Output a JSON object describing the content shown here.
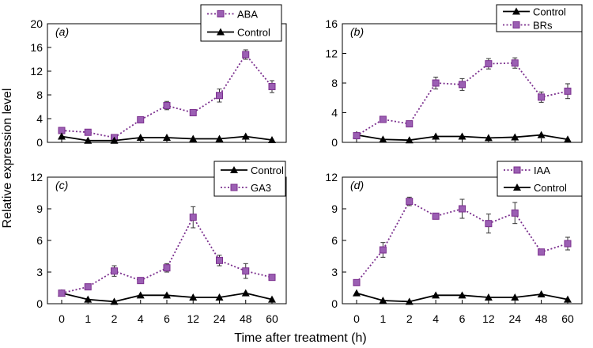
{
  "figure": {
    "ylabel": "Relative expression level",
    "xlabel": "Time after treatment (h)"
  },
  "colors": {
    "treatment": "#7b2f8e",
    "treatment_fill": "#9b5fb3",
    "control": "#000000"
  },
  "chart_data": [
    {
      "type": "line",
      "panel": "(a)",
      "categories": [
        "0",
        "1",
        "2",
        "4",
        "6",
        "12",
        "24",
        "48",
        "60"
      ],
      "ylim": [
        0,
        20
      ],
      "yticks": [
        "0",
        "4",
        "8",
        "12",
        "16",
        "20"
      ],
      "legend_position": "top-right",
      "legend": [
        "ABA",
        "Control"
      ],
      "series": [
        {
          "name": "ABA",
          "style": "dotted-square",
          "values": [
            2.0,
            1.7,
            0.8,
            3.8,
            6.2,
            5.0,
            7.9,
            14.8,
            9.4
          ],
          "errors": [
            0.3,
            0.3,
            0.2,
            0.3,
            0.7,
            0.3,
            1.1,
            0.8,
            1.0
          ]
        },
        {
          "name": "Control",
          "style": "solid-triangle",
          "values": [
            1.0,
            0.3,
            0.3,
            0.8,
            0.8,
            0.6,
            0.6,
            1.0,
            0.4
          ]
        }
      ]
    },
    {
      "type": "line",
      "panel": "(b)",
      "categories": [
        "0",
        "1",
        "2",
        "4",
        "6",
        "12",
        "24",
        "48",
        "60"
      ],
      "ylim": [
        0,
        16
      ],
      "yticks": [
        "0",
        "4",
        "8",
        "12",
        "16"
      ],
      "legend_position": "top-right",
      "legend": [
        "Control",
        "BRs"
      ],
      "series": [
        {
          "name": "Control",
          "style": "solid-triangle",
          "values": [
            1.0,
            0.4,
            0.3,
            0.8,
            0.8,
            0.6,
            0.7,
            1.0,
            0.4
          ]
        },
        {
          "name": "BRs",
          "style": "dotted-square",
          "values": [
            0.9,
            3.1,
            2.5,
            8.0,
            7.8,
            10.6,
            10.7,
            6.1,
            6.9
          ],
          "errors": [
            0.2,
            0.3,
            0.2,
            0.8,
            0.8,
            0.7,
            0.7,
            0.7,
            1.0
          ]
        }
      ]
    },
    {
      "type": "line",
      "panel": "(c)",
      "categories": [
        "0",
        "1",
        "2",
        "4",
        "6",
        "12",
        "24",
        "48",
        "60"
      ],
      "ylim": [
        0,
        12
      ],
      "yticks": [
        "0",
        "3",
        "6",
        "9",
        "12"
      ],
      "legend_position": "top-right",
      "legend": [
        "Control",
        "GA3"
      ],
      "series": [
        {
          "name": "Control",
          "style": "solid-triangle",
          "values": [
            1.0,
            0.4,
            0.2,
            0.8,
            0.8,
            0.6,
            0.6,
            1.0,
            0.4
          ]
        },
        {
          "name": "GA3",
          "style": "dotted-square",
          "values": [
            1.0,
            1.6,
            3.1,
            2.2,
            3.4,
            8.2,
            4.1,
            3.1,
            2.5
          ],
          "errors": [
            0.1,
            0.2,
            0.5,
            0.2,
            0.4,
            1.0,
            0.5,
            0.7,
            0.1
          ]
        }
      ]
    },
    {
      "type": "line",
      "panel": "(d)",
      "categories": [
        "0",
        "1",
        "2",
        "4",
        "6",
        "12",
        "24",
        "48",
        "60"
      ],
      "ylim": [
        0,
        12
      ],
      "yticks": [
        "0",
        "3",
        "6",
        "9",
        "12"
      ],
      "legend_position": "top-right",
      "legend": [
        "IAA",
        "Control"
      ],
      "series": [
        {
          "name": "IAA",
          "style": "dotted-square",
          "values": [
            2.0,
            5.1,
            9.7,
            8.3,
            9.0,
            7.6,
            8.6,
            4.9,
            5.7
          ],
          "errors": [
            0.2,
            0.7,
            0.4,
            0.2,
            0.9,
            0.9,
            1.0,
            0.2,
            0.6
          ]
        },
        {
          "name": "Control",
          "style": "solid-triangle",
          "values": [
            1.0,
            0.3,
            0.2,
            0.8,
            0.8,
            0.6,
            0.6,
            0.9,
            0.4
          ]
        }
      ]
    }
  ]
}
